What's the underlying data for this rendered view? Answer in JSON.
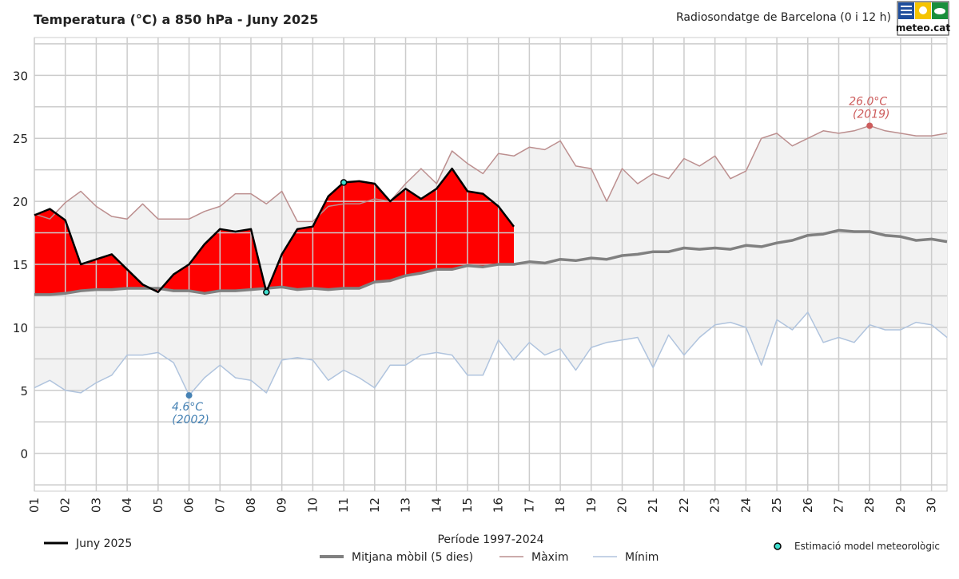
{
  "chart_data": {
    "type": "line",
    "title": "Temperatura (°C) a 850 hPa - Juny 2025",
    "subtitle": "Radiosondatge de Barcelona (0 i 12 h)",
    "logo_text": "meteo.cat",
    "x_tick_labels": [
      "01",
      "02",
      "03",
      "04",
      "05",
      "06",
      "07",
      "08",
      "09",
      "10",
      "11",
      "12",
      "13",
      "14",
      "15",
      "16",
      "17",
      "18",
      "19",
      "20",
      "21",
      "22",
      "23",
      "24",
      "25",
      "26",
      "27",
      "28",
      "29",
      "30"
    ],
    "xlim": [
      1,
      30.5
    ],
    "ylim": [
      -3,
      33
    ],
    "y_ticks": [
      0,
      5,
      10,
      15,
      20,
      25,
      30
    ],
    "grid": true,
    "series": [
      {
        "name": "Juny 2025",
        "color": "#000000",
        "x": [
          1,
          1.5,
          2,
          2.5,
          3,
          3.5,
          4,
          4.5,
          5,
          5.5,
          6,
          6.5,
          7,
          7.5,
          8,
          8.5,
          9,
          9.5,
          10,
          10.5,
          11,
          11.5,
          12,
          12.5,
          13,
          13.5,
          14,
          14.5,
          15,
          15.5,
          16,
          16.5
        ],
        "values": [
          18.9,
          19.4,
          18.5,
          15.0,
          15.4,
          15.8,
          14.6,
          13.4,
          12.8,
          14.2,
          15.0,
          16.6,
          17.8,
          17.6,
          17.8,
          12.8,
          15.8,
          17.8,
          18.0,
          20.4,
          21.5,
          21.6,
          21.4,
          20.0,
          21.0,
          20.2,
          21.0,
          22.6,
          20.8,
          20.6,
          19.6,
          18.0
        ]
      },
      {
        "name": "Mitjana mòbil (5 dies)",
        "color": "#808080",
        "x": [
          1,
          1.5,
          2,
          2.5,
          3,
          3.5,
          4,
          4.5,
          5,
          5.5,
          6,
          6.5,
          7,
          7.5,
          8,
          8.5,
          9,
          9.5,
          10,
          10.5,
          11,
          11.5,
          12,
          12.5,
          13,
          13.5,
          14,
          14.5,
          15,
          15.5,
          16,
          16.5,
          17,
          17.5,
          18,
          18.5,
          19,
          19.5,
          20,
          20.5,
          21,
          21.5,
          22,
          22.5,
          23,
          23.5,
          24,
          24.5,
          25,
          25.5,
          26,
          26.5,
          27,
          27.5,
          28,
          28.5,
          29,
          29.5,
          30,
          30.5
        ],
        "values": [
          12.6,
          12.6,
          12.7,
          12.9,
          13.0,
          13.0,
          13.1,
          13.1,
          13.1,
          12.9,
          12.9,
          12.7,
          12.9,
          12.9,
          13.0,
          13.1,
          13.2,
          13.0,
          13.1,
          13.0,
          13.1,
          13.1,
          13.6,
          13.7,
          14.1,
          14.3,
          14.6,
          14.6,
          14.9,
          14.8,
          15.0,
          15.0,
          15.2,
          15.1,
          15.4,
          15.3,
          15.5,
          15.4,
          15.7,
          15.8,
          16.0,
          16.0,
          16.3,
          16.2,
          16.3,
          16.2,
          16.5,
          16.4,
          16.7,
          16.9,
          17.3,
          17.4,
          17.7,
          17.6,
          17.6,
          17.3,
          17.2,
          16.9,
          17.0,
          16.8
        ]
      },
      {
        "name": "Màxim",
        "color": "#bc8f8f",
        "x": [
          1,
          1.5,
          2,
          2.5,
          3,
          3.5,
          4,
          4.5,
          5,
          5.5,
          6,
          6.5,
          7,
          7.5,
          8,
          8.5,
          9,
          9.5,
          10,
          10.5,
          11,
          11.5,
          12,
          12.5,
          13,
          13.5,
          14,
          14.5,
          15,
          15.5,
          16,
          16.5,
          17,
          17.5,
          18,
          18.5,
          19,
          19.5,
          20,
          20.5,
          21,
          21.5,
          22,
          22.5,
          23,
          23.5,
          24,
          24.5,
          25,
          25.5,
          26,
          26.5,
          27,
          27.5,
          28,
          28.5,
          29,
          29.5,
          30,
          30.5
        ],
        "values": [
          19.0,
          18.6,
          19.9,
          20.8,
          19.6,
          18.8,
          18.6,
          19.8,
          18.6,
          18.6,
          18.6,
          19.2,
          19.6,
          20.6,
          20.6,
          19.8,
          20.8,
          18.4,
          18.4,
          19.6,
          19.8,
          19.8,
          20.2,
          20.0,
          21.4,
          22.6,
          21.4,
          24.0,
          23.0,
          22.2,
          23.8,
          23.6,
          24.3,
          24.1,
          24.8,
          22.8,
          22.6,
          20.0,
          22.6,
          21.4,
          22.2,
          21.8,
          23.4,
          22.8,
          23.6,
          21.8,
          22.4,
          25.0,
          25.4,
          24.4,
          25.0,
          25.6,
          25.4,
          25.6,
          26.0,
          25.6,
          25.4,
          25.2,
          25.2,
          25.4
        ]
      },
      {
        "name": "Mínim",
        "color": "#b0c4de",
        "x": [
          1,
          1.5,
          2,
          2.5,
          3,
          3.5,
          4,
          4.5,
          5,
          5.5,
          6,
          6.5,
          7,
          7.5,
          8,
          8.5,
          9,
          9.5,
          10,
          10.5,
          11,
          11.5,
          12,
          12.5,
          13,
          13.5,
          14,
          14.5,
          15,
          15.5,
          16,
          16.5,
          17,
          17.5,
          18,
          18.5,
          19,
          19.5,
          20,
          20.5,
          21,
          21.5,
          22,
          22.5,
          23,
          23.5,
          24,
          24.5,
          25,
          25.5,
          26,
          26.5,
          27,
          27.5,
          28,
          28.5,
          29,
          29.5,
          30,
          30.5
        ],
        "values": [
          5.2,
          5.8,
          5.0,
          4.8,
          5.6,
          6.2,
          7.8,
          7.8,
          8.0,
          7.2,
          4.6,
          6.0,
          7.0,
          6.0,
          5.8,
          4.8,
          7.4,
          7.6,
          7.4,
          5.8,
          6.6,
          6.0,
          5.2,
          7.0,
          7.0,
          7.8,
          8.0,
          7.8,
          6.2,
          6.2,
          9.0,
          7.4,
          8.8,
          7.8,
          8.3,
          6.6,
          8.4,
          8.8,
          9.0,
          9.2,
          6.8,
          9.4,
          7.8,
          9.2,
          10.2,
          10.4,
          10.0,
          7.0,
          10.6,
          9.8,
          11.2,
          8.8,
          9.2,
          8.8,
          10.2,
          9.8,
          9.8,
          10.4,
          10.2,
          9.2
        ]
      }
    ],
    "model_estimates": {
      "name": "Estimació model meteorològic",
      "color": "#40e0d0",
      "points": [
        {
          "x": 8.5,
          "y": 12.8
        },
        {
          "x": 11,
          "y": 21.5
        }
      ]
    },
    "annotations": [
      {
        "x": 28,
        "y": 26.0,
        "line1": "26.0°C",
        "line2": "(2019)",
        "color": "#cd5c5c"
      },
      {
        "x": 6,
        "y": 4.6,
        "line1": "4.6°C",
        "line2": "(2002)",
        "color": "#4682b4"
      }
    ],
    "anomaly_fill_color": "#ff0000",
    "range_fill_color": "#f2f2f2",
    "legend": {
      "period_title": "Període 1997-2024",
      "placement": "bottom"
    }
  }
}
